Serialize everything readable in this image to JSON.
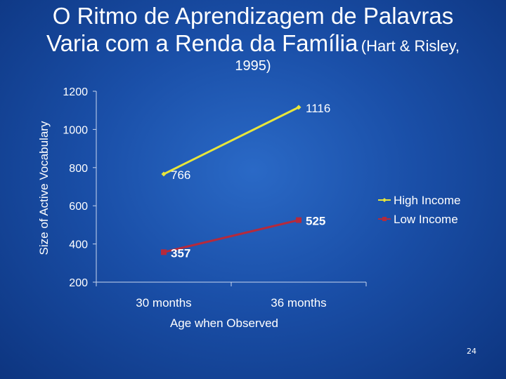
{
  "title": {
    "line1": "O Ritmo de Aprendizagem de Palavras",
    "line2_main": "Varia com a Renda da Família",
    "line2_small": "(Hart & Risley,",
    "line3": "1995)"
  },
  "slide_number": "24",
  "colors": {
    "high_income": "#e8e63a",
    "low_income": "#b52a3c",
    "axis": "#c9d6ee",
    "text": "#ffffff"
  },
  "chart_data": {
    "type": "line",
    "categories": [
      "30 months",
      "36 months"
    ],
    "series": [
      {
        "name": "High Income",
        "values": [
          766,
          1116
        ],
        "labels": [
          "766",
          "1116"
        ],
        "bold": false
      },
      {
        "name": "Low Income",
        "values": [
          357,
          525
        ],
        "labels": [
          "357",
          "525"
        ],
        "bold": true
      }
    ],
    "xlabel": "Age when Observed",
    "ylabel": "Size of Active Vocabulary",
    "ylim": [
      200,
      1200
    ],
    "yticks": [
      "1200",
      "1000",
      "800",
      "600",
      "400",
      "200"
    ],
    "ytick_values": [
      1200,
      1000,
      800,
      600,
      400,
      200
    ],
    "grid": false,
    "legend": "right"
  }
}
